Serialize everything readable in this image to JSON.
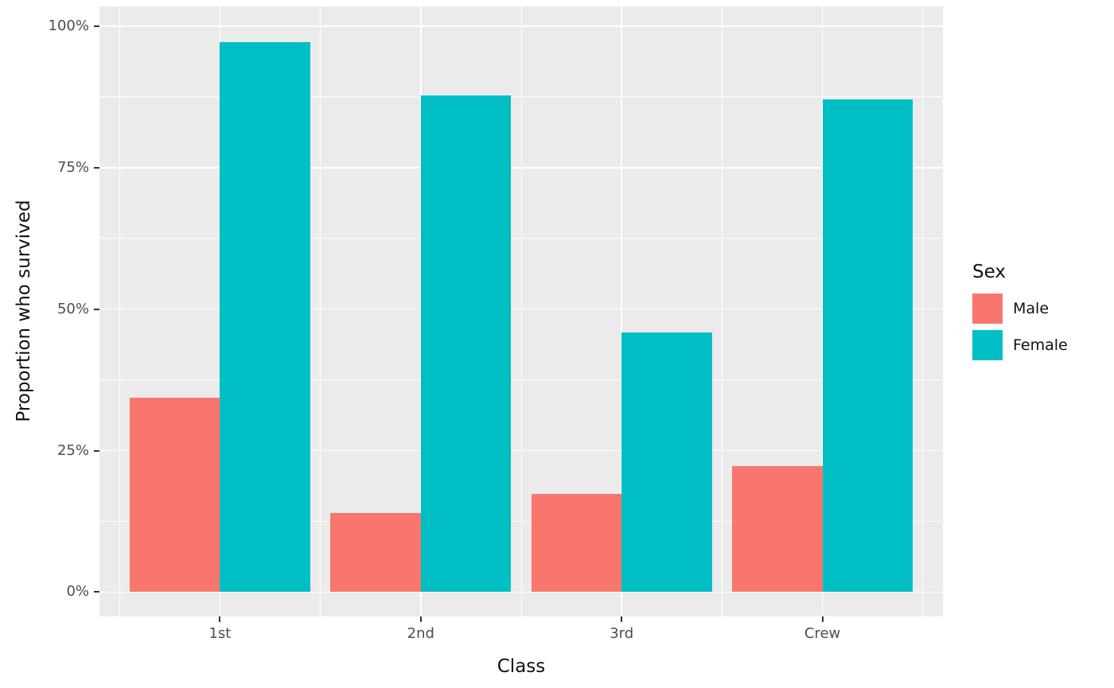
{
  "chart_data": {
    "type": "bar",
    "title": "",
    "xlabel": "Class",
    "ylabel": "Proportion who survived",
    "categories": [
      "1st",
      "2nd",
      "3rd",
      "Crew"
    ],
    "series": [
      {
        "name": "Male",
        "color": "#F8766D",
        "values": [
          0.344,
          0.14,
          0.173,
          0.223
        ]
      },
      {
        "name": "Female",
        "color": "#00BFC4",
        "values": [
          0.972,
          0.877,
          0.459,
          0.87
        ]
      }
    ],
    "legend_title": "Sex",
    "legend_position": "right",
    "y_ticks": [
      {
        "value": 0.0,
        "label": "0%"
      },
      {
        "value": 0.25,
        "label": "25%"
      },
      {
        "value": 0.5,
        "label": "50%"
      },
      {
        "value": 0.75,
        "label": "75%"
      },
      {
        "value": 1.0,
        "label": "100%"
      }
    ],
    "y_minor": [
      0.125,
      0.375,
      0.625,
      0.875
    ],
    "x_minor": [
      0.5,
      1.5,
      2.5,
      3.5,
      4.5
    ],
    "x_domain": [
      0.4,
      4.6
    ],
    "ylim": [
      -0.043,
      1.035
    ],
    "bar_width": 0.45,
    "grid": true,
    "panel_bg": "#EBEBEB",
    "grid_color": "#FFFFFF",
    "tick_color": "#333333",
    "tick_label_color": "#4D4D4D",
    "title_color": "#111111"
  }
}
